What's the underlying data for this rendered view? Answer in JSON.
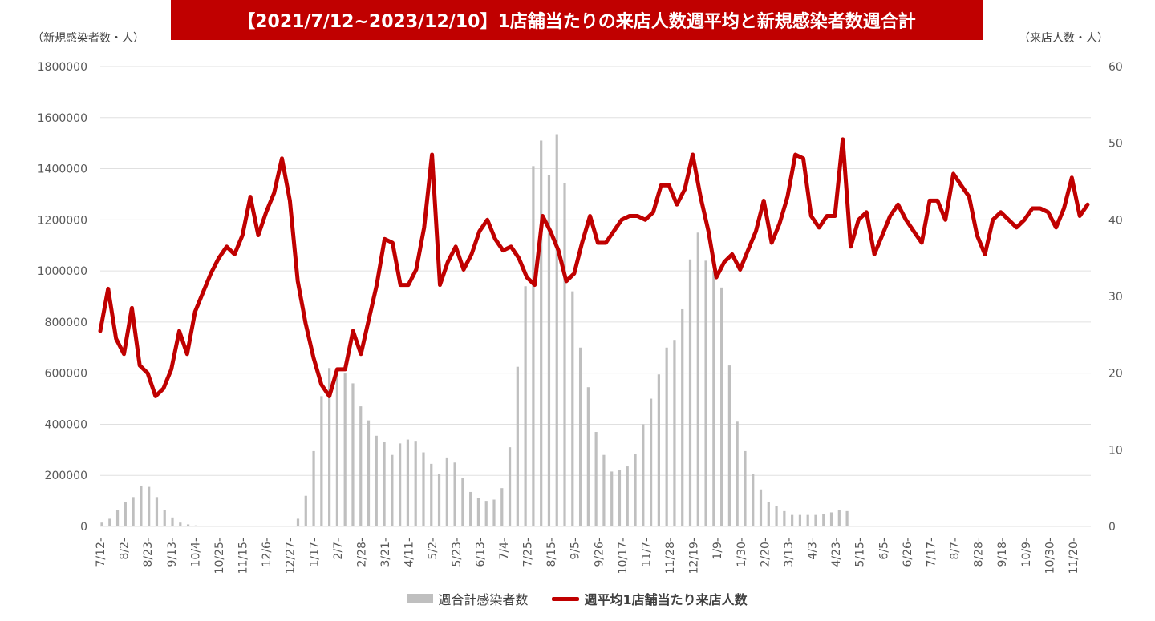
{
  "colors": {
    "accent": "#c00000",
    "bar": "#bfbfbf",
    "grid": "#e0e0e0"
  },
  "chart_data": {
    "type": "bar",
    "title": "【2021/7/12~2023/12/10】1店舗当たりの来店人数週平均と新規感染者数週合計",
    "ylabel_left": "（新規感染者数・人）",
    "ylabel_right": "（来店人数・人）",
    "ylim_left": [
      0,
      1800000
    ],
    "ylim_right": [
      0,
      60
    ],
    "yticks_left": [
      "0",
      "200000",
      "400000",
      "600000",
      "800000",
      "1000000",
      "1200000",
      "1400000",
      "1600000",
      "1800000"
    ],
    "yticks_right": [
      "0",
      "10",
      "20",
      "30",
      "40",
      "50",
      "60"
    ],
    "xtick_labels": [
      "7/12-",
      "8/2-",
      "8/23-",
      "9/13-",
      "10/4-",
      "10/25-",
      "11/15-",
      "12/6-",
      "12/27-",
      "1/17-",
      "2/7-",
      "2/28-",
      "3/21-",
      "4/11-",
      "5/2-",
      "5/23-",
      "6/13-",
      "7/4-",
      "7/25-",
      "8/15-",
      "9/5-",
      "9/26-",
      "10/17-",
      "11/7-",
      "11/28-",
      "12/19-",
      "1/9-",
      "1/30-",
      "2/20-",
      "3/13-",
      "4/3-",
      "4/23-",
      "5/15-",
      "6/5-",
      "6/26-",
      "7/17-",
      "8/7-",
      "8/28-",
      "9/18-",
      "10/9-",
      "10/30-",
      "11/20-"
    ],
    "legend_placement": "bottom",
    "grid": true,
    "series": [
      {
        "name": "週合計感染者数",
        "type": "bar",
        "axis": "left",
        "values": [
          15000,
          30000,
          65000,
          95000,
          115000,
          160000,
          155000,
          115000,
          65000,
          35000,
          15000,
          8000,
          4000,
          2000,
          1500,
          1000,
          1000,
          1000,
          1000,
          1000,
          1000,
          1000,
          1000,
          1000,
          1000,
          30000,
          120000,
          295000,
          510000,
          620000,
          610000,
          600000,
          560000,
          470000,
          415000,
          355000,
          330000,
          280000,
          325000,
          340000,
          335000,
          290000,
          245000,
          205000,
          270000,
          250000,
          190000,
          135000,
          110000,
          100000,
          105000,
          150000,
          310000,
          625000,
          940000,
          1410000,
          1510000,
          1375000,
          1535000,
          1345000,
          920000,
          700000,
          545000,
          370000,
          280000,
          215000,
          220000,
          235000,
          285000,
          400000,
          500000,
          595000,
          700000,
          730000,
          850000,
          1045000,
          1150000,
          1040000,
          1000000,
          935000,
          630000,
          410000,
          295000,
          205000,
          145000,
          95000,
          80000,
          60000,
          45000,
          45000,
          45000,
          45000,
          50000,
          55000,
          65000,
          60000
        ]
      },
      {
        "name": "週平均1店舗当たり来店人数",
        "type": "line",
        "axis": "right",
        "values": [
          25.5,
          31.0,
          24.5,
          22.5,
          28.5,
          21.0,
          20.0,
          17.0,
          18.0,
          20.5,
          25.5,
          22.5,
          28.0,
          30.5,
          33.0,
          35.0,
          36.5,
          35.5,
          38.0,
          43.0,
          38.0,
          41.0,
          43.5,
          48.0,
          42.5,
          32.0,
          26.5,
          22.0,
          18.5,
          17.0,
          20.5,
          20.5,
          25.5,
          22.5,
          27.0,
          31.5,
          37.5,
          37.0,
          31.5,
          31.5,
          33.5,
          39.0,
          48.5,
          31.5,
          34.5,
          36.5,
          33.5,
          35.5,
          38.5,
          40.0,
          37.5,
          36.0,
          36.5,
          35.0,
          32.5,
          31.5,
          40.5,
          38.5,
          36.0,
          32.0,
          33.0,
          37.0,
          40.5,
          37.0,
          37.0,
          38.5,
          40.0,
          40.5,
          40.5,
          40.0,
          41.0,
          44.5,
          44.5,
          42.0,
          44.0,
          48.5,
          43.0,
          38.5,
          32.5,
          34.5,
          35.5,
          33.5,
          36.0,
          38.5,
          42.5,
          37.0,
          39.5,
          43.0,
          48.5,
          48.0,
          40.5,
          39.0,
          40.5,
          40.5,
          50.5,
          36.5,
          40.0,
          41.0,
          35.5,
          38.0,
          40.5,
          42.0,
          40.0,
          38.5,
          37.0,
          42.5,
          42.5,
          40.0,
          46.0,
          44.5,
          43.0,
          38.0,
          35.5,
          40.0,
          41.0,
          40.0,
          39.0,
          40.0,
          41.5,
          41.5,
          41.0,
          39.0,
          41.5,
          45.5,
          40.5,
          42.0
        ]
      }
    ]
  }
}
